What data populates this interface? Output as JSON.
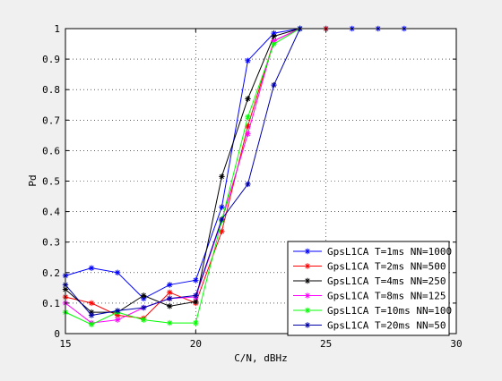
{
  "chart_data": {
    "type": "line",
    "xlabel": "C/N, dBHz",
    "ylabel": "Pd",
    "xlim": [
      15,
      30
    ],
    "ylim": [
      0,
      1
    ],
    "xticks": [
      "15",
      "20",
      "25",
      "30"
    ],
    "yticks": [
      "0",
      "0.1",
      "0.2",
      "0.3",
      "0.4",
      "0.5",
      "0.6",
      "0.7",
      "0.8",
      "0.9",
      "1"
    ],
    "grid": true,
    "legend_position": "bottom-right",
    "marker": "asterisk",
    "x": [
      15,
      16,
      17,
      18,
      19,
      20,
      21,
      22,
      23,
      24,
      25,
      26,
      27,
      28
    ],
    "series": [
      {
        "name": "GpsL1CA T=1ms NN=1000",
        "color": "#0000ff",
        "values": [
          0.19,
          0.215,
          0.2,
          0.115,
          0.16,
          0.175,
          0.415,
          0.895,
          0.985,
          1.0,
          1.0,
          1.0,
          1.0,
          1.0
        ]
      },
      {
        "name": "GpsL1CA T=2ms NN=500",
        "color": "#ff0000",
        "values": [
          0.12,
          0.1,
          0.06,
          0.05,
          0.135,
          0.1,
          0.335,
          0.68,
          0.96,
          1.0,
          1.0,
          null,
          null,
          null
        ]
      },
      {
        "name": "GpsL1CA T=4ms NN=250",
        "color": "#000000",
        "values": [
          0.145,
          0.07,
          0.07,
          0.125,
          0.09,
          0.105,
          0.515,
          0.77,
          0.975,
          1.0,
          null,
          null,
          null,
          null
        ]
      },
      {
        "name": "GpsL1CA T=8ms NN=125",
        "color": "#ff00ff",
        "values": [
          0.1,
          0.035,
          0.045,
          0.085,
          0.115,
          0.12,
          0.37,
          0.655,
          0.96,
          1.0,
          null,
          null,
          null,
          null
        ]
      },
      {
        "name": "GpsL1CA T=10ms NN=100",
        "color": "#00ff00",
        "values": [
          0.07,
          0.03,
          0.07,
          0.045,
          0.035,
          0.035,
          0.37,
          0.71,
          0.95,
          1.0,
          null,
          null,
          null,
          null
        ]
      },
      {
        "name": "GpsL1CA T=20ms NN=50",
        "color": "#0000aa",
        "values": [
          0.16,
          0.06,
          0.075,
          0.085,
          0.115,
          0.125,
          0.375,
          0.49,
          0.815,
          1.0,
          null,
          null,
          null,
          null
        ]
      }
    ]
  }
}
